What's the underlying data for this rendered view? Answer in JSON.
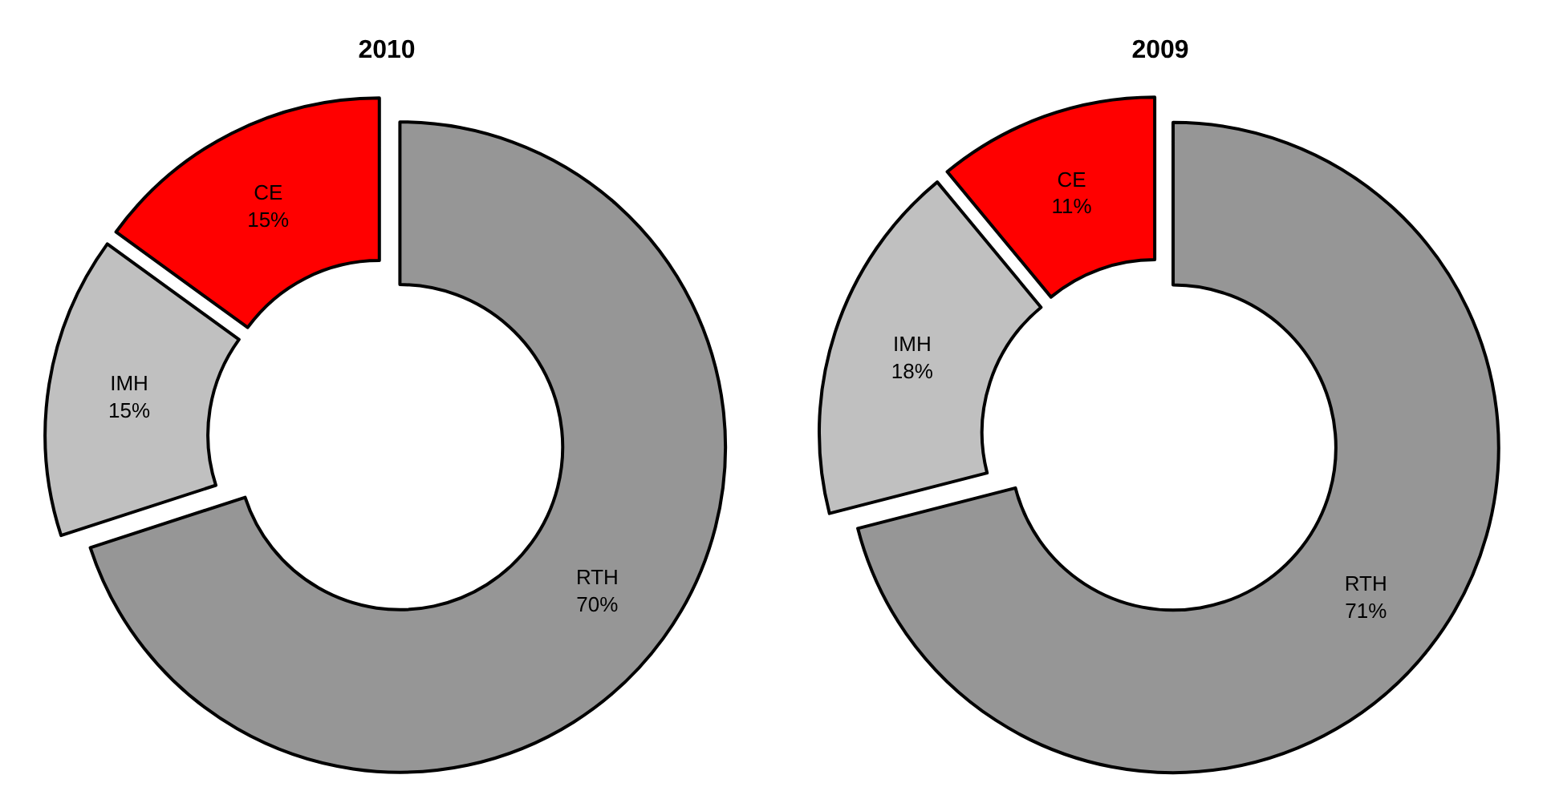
{
  "chart_data": [
    {
      "type": "donut",
      "title": "2010",
      "categories": [
        "RTH",
        "IMH",
        "CE"
      ],
      "values": [
        70,
        15,
        15
      ],
      "value_labels": [
        "70%",
        "15%",
        "15%"
      ],
      "colors": [
        "#969696",
        "#c0c0c0",
        "#ff0000"
      ],
      "legend": false
    },
    {
      "type": "donut",
      "title": "2009",
      "categories": [
        "RTH",
        "IMH",
        "CE"
      ],
      "values": [
        71,
        18,
        11
      ],
      "value_labels": [
        "71%",
        "18%",
        "11%"
      ],
      "colors": [
        "#969696",
        "#c0c0c0",
        "#ff0000"
      ],
      "legend": false
    }
  ]
}
